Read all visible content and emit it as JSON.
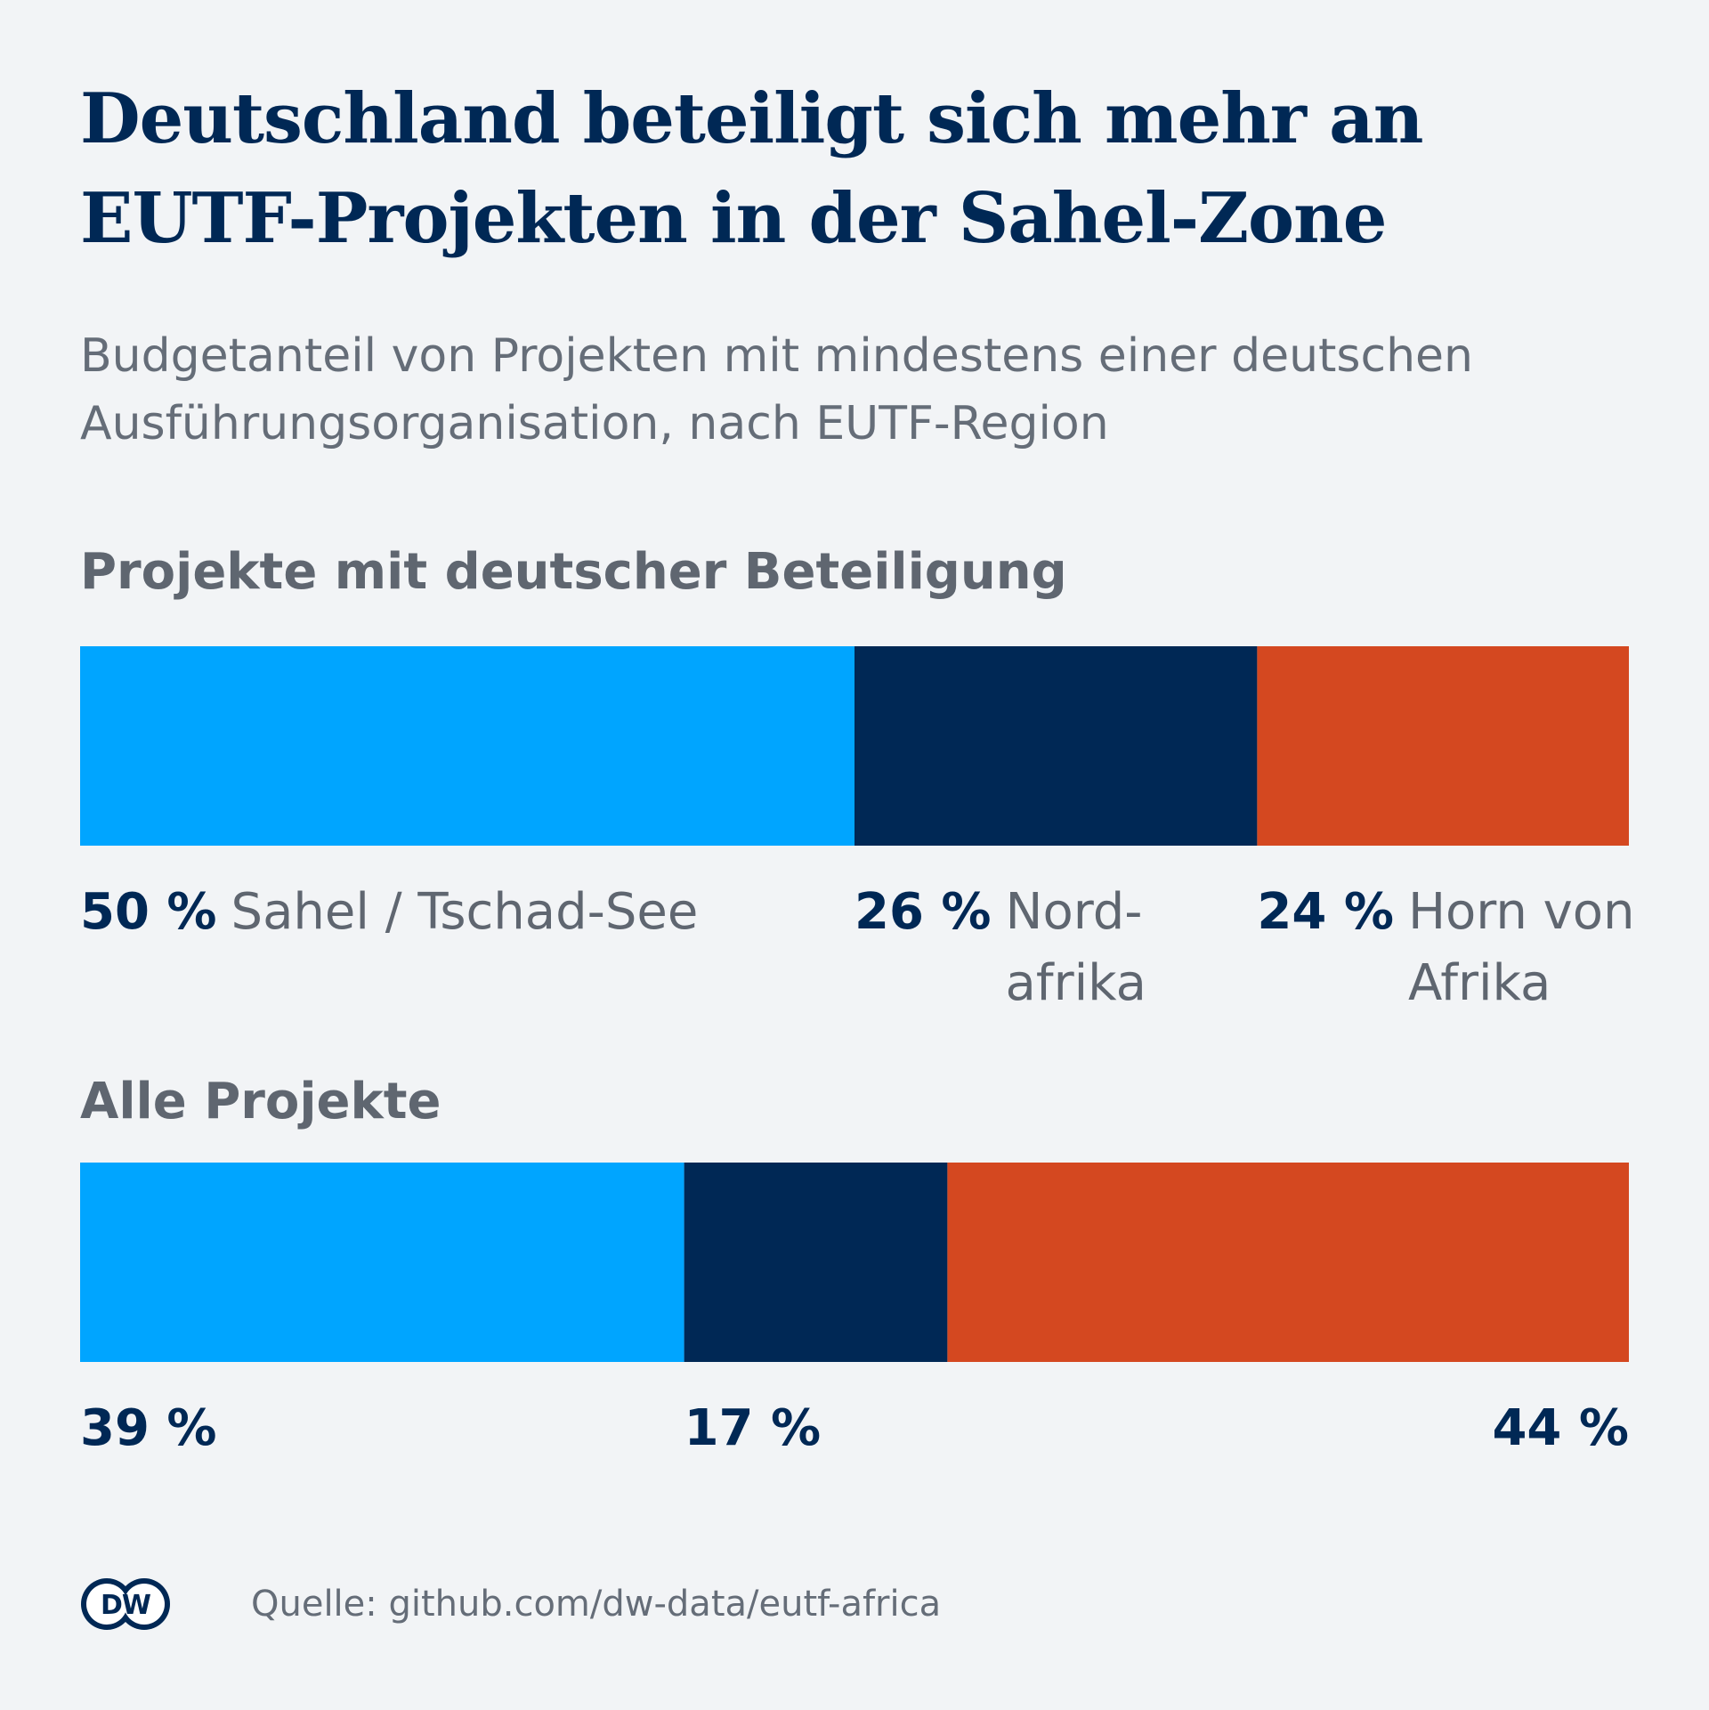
{
  "title": "Deutschland beteiligt sich mehr an EUTF-Projekten in der Sahel-Zone",
  "subtitle": "Budgetanteil von Projekten mit mindestens einer deutschen Ausführungsorganisation, nach EUTF-Region",
  "source": "Quelle: github.com/dw-data/eutf-africa",
  "logo_text": "DW",
  "colors": {
    "sahel": "#00a5ff",
    "nordafrika": "#002855",
    "horn": "#d44820",
    "background": "#f2f4f6"
  },
  "chart_data": [
    {
      "type": "bar",
      "stacked": true,
      "orientation": "horizontal",
      "title": "Projekte mit deutscher Beteiligung",
      "categories": [
        "Sahel / Tschad-See",
        "Nordafrika",
        "Horn von Afrika"
      ],
      "values": [
        50,
        26,
        24
      ],
      "value_labels": [
        "50 %",
        "26 %",
        "24 %"
      ],
      "category_labels": [
        [
          "Sahel / Tschad-See"
        ],
        [
          "Nord-",
          "afrika"
        ],
        [
          "Horn von",
          "Afrika"
        ]
      ],
      "unit": "%"
    },
    {
      "type": "bar",
      "stacked": true,
      "orientation": "horizontal",
      "title": "Alle Projekte",
      "categories": [
        "Sahel / Tschad-See",
        "Nordafrika",
        "Horn von Afrika"
      ],
      "values": [
        39,
        17,
        44
      ],
      "value_labels": [
        "39 %",
        "17 %",
        "44 %"
      ],
      "unit": "%"
    }
  ]
}
